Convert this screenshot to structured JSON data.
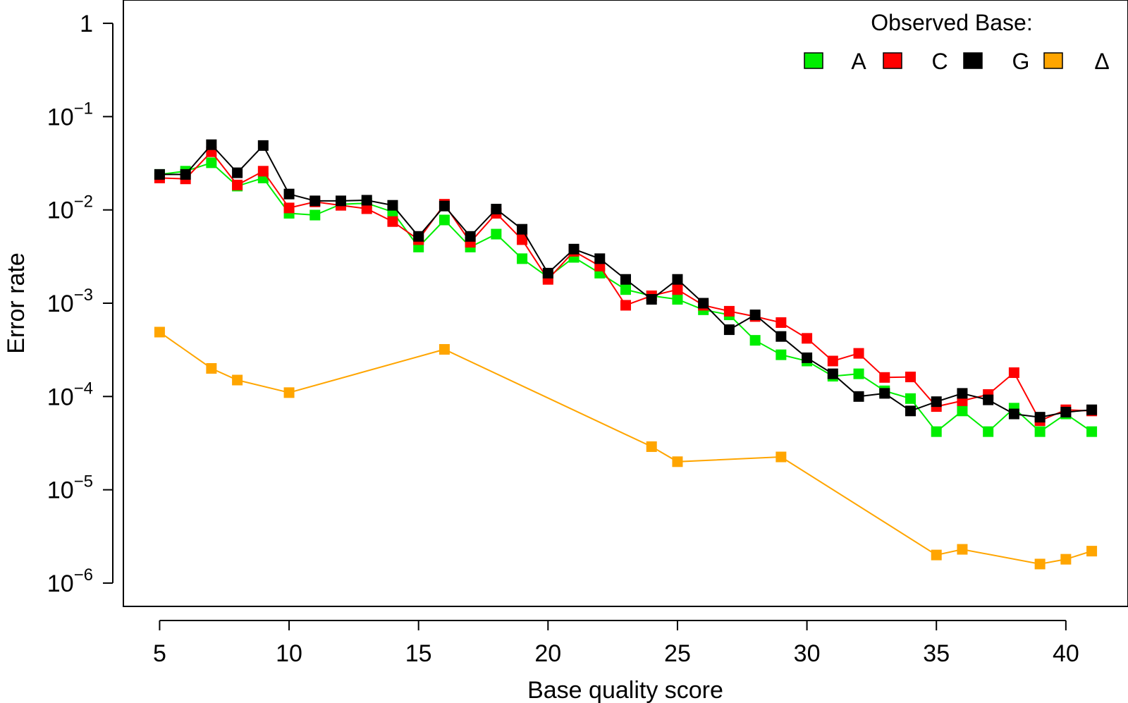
{
  "chart_data": {
    "type": "line",
    "title": "",
    "xlabel": "Base quality score",
    "ylabel": "Error rate",
    "xlim": [
      3.6,
      42.4
    ],
    "ylim_log10": [
      -6.25,
      0.25
    ],
    "y_scale": "log",
    "grid": false,
    "x_ticks": [
      5,
      10,
      15,
      20,
      25,
      30,
      35,
      40
    ],
    "x_tick_labels": [
      "5",
      "10",
      "15",
      "20",
      "25",
      "30",
      "35",
      "40"
    ],
    "y_ticks": [
      {
        "log10": 0,
        "base": "1",
        "exp": ""
      },
      {
        "log10": -1,
        "base": "10",
        "exp": "−1"
      },
      {
        "log10": -2,
        "base": "10",
        "exp": "−2"
      },
      {
        "log10": -3,
        "base": "10",
        "exp": "−3"
      },
      {
        "log10": -4,
        "base": "10",
        "exp": "−4"
      },
      {
        "log10": -5,
        "base": "10",
        "exp": "−5"
      },
      {
        "log10": -6,
        "base": "10",
        "exp": "−6"
      }
    ],
    "legend": {
      "title": "Observed Base:",
      "placement": "top-right"
    },
    "series": [
      {
        "name": "A",
        "color": "#00EE00",
        "x": [
          5,
          6,
          7,
          8,
          9,
          10,
          11,
          12,
          13,
          14,
          15,
          16,
          17,
          18,
          19,
          20,
          21,
          22,
          23,
          24,
          25,
          26,
          27,
          28,
          29,
          30,
          31,
          32,
          33,
          34,
          35,
          36,
          37,
          38,
          39,
          40,
          41
        ],
        "y": [
          0.024,
          0.026,
          0.032,
          0.018,
          0.022,
          0.0092,
          0.0088,
          0.0115,
          0.0118,
          0.0095,
          0.004,
          0.0078,
          0.004,
          0.0055,
          0.003,
          0.0019,
          0.0031,
          0.0021,
          0.0014,
          0.0012,
          0.0011,
          0.00085,
          0.00075,
          0.0004,
          0.00028,
          0.00024,
          0.000165,
          0.000175,
          0.000115,
          9.5e-05,
          4.2e-05,
          7e-05,
          4.2e-05,
          7.5e-05,
          4.2e-05,
          6.5e-05,
          4.2e-05
        ]
      },
      {
        "name": "C",
        "color": "#FF0000",
        "x": [
          5,
          6,
          7,
          8,
          9,
          10,
          11,
          12,
          13,
          14,
          15,
          16,
          17,
          18,
          19,
          20,
          21,
          22,
          23,
          24,
          25,
          26,
          27,
          28,
          29,
          30,
          31,
          32,
          33,
          34,
          35,
          36,
          37,
          38,
          39,
          40,
          41
        ],
        "y": [
          0.022,
          0.0215,
          0.042,
          0.0185,
          0.026,
          0.0105,
          0.0122,
          0.0112,
          0.0103,
          0.0075,
          0.0048,
          0.0115,
          0.0045,
          0.0092,
          0.0048,
          0.0018,
          0.0036,
          0.0025,
          0.00095,
          0.0012,
          0.0014,
          0.00095,
          0.00082,
          0.00072,
          0.00062,
          0.00042,
          0.00024,
          0.00029,
          0.00016,
          0.000162,
          7.8e-05,
          9e-05,
          0.000105,
          0.00018,
          5.5e-05,
          7.2e-05,
          7e-05
        ]
      },
      {
        "name": "G",
        "color": "#000000",
        "x": [
          5,
          6,
          7,
          8,
          9,
          10,
          11,
          12,
          13,
          14,
          15,
          16,
          17,
          18,
          19,
          20,
          21,
          22,
          23,
          24,
          25,
          26,
          27,
          28,
          29,
          30,
          31,
          32,
          33,
          34,
          35,
          36,
          37,
          38,
          39,
          40,
          41
        ],
        "y": [
          0.024,
          0.024,
          0.05,
          0.025,
          0.049,
          0.0148,
          0.0125,
          0.0125,
          0.0127,
          0.0112,
          0.0052,
          0.011,
          0.0052,
          0.0102,
          0.0062,
          0.0021,
          0.0038,
          0.003,
          0.0018,
          0.0011,
          0.0018,
          0.001,
          0.00052,
          0.00075,
          0.00044,
          0.00026,
          0.000175,
          0.0001,
          0.000108,
          7e-05,
          8.8e-05,
          0.000108,
          9.2e-05,
          6.5e-05,
          6e-05,
          6.8e-05,
          7.2e-05
        ]
      },
      {
        "name": "Δ",
        "color": "#FFA500",
        "x": [
          5,
          7,
          8,
          10,
          16,
          24,
          25,
          29,
          35,
          36,
          39,
          40,
          41
        ],
        "y": [
          0.00049,
          0.0002,
          0.00015,
          0.00011,
          0.00032,
          2.9e-05,
          2e-05,
          2.25e-05,
          2e-06,
          2.3e-06,
          1.6e-06,
          1.8e-06,
          2.2e-06
        ]
      }
    ]
  }
}
